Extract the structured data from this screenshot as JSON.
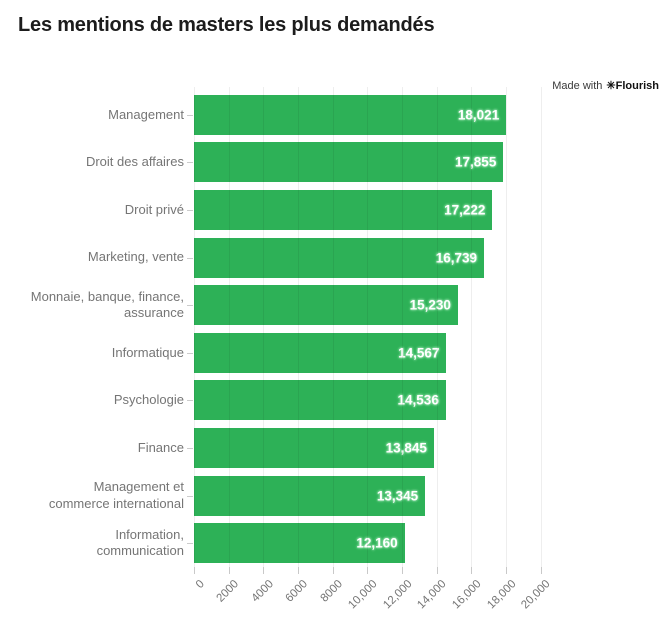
{
  "chart": {
    "title": "Les mentions de masters les plus demandés"
  },
  "badge": {
    "made_with": "Made with",
    "icon": "✳",
    "brand": "Flourish"
  },
  "chart_data": {
    "type": "bar",
    "orientation": "horizontal",
    "title": "Les mentions de masters les plus demandés",
    "categories": [
      "Management",
      "Droit des affaires",
      "Droit privé",
      "Marketing, vente",
      "Monnaie, banque, finance,\nassurance",
      "Informatique",
      "Psychologie",
      "Finance",
      "Management et\ncommerce international",
      "Information,\ncommunication"
    ],
    "values": [
      18021,
      17855,
      17222,
      16739,
      15230,
      14567,
      14536,
      13845,
      13345,
      12160
    ],
    "value_labels": [
      "18,021",
      "17,855",
      "17,222",
      "16,739",
      "15,230",
      "14,567",
      "14,536",
      "13,845",
      "13,345",
      "12,160"
    ],
    "xlim": [
      0,
      20000
    ],
    "x_ticks": [
      0,
      2000,
      4000,
      6000,
      8000,
      10000,
      12000,
      14000,
      16000,
      18000,
      20000
    ],
    "x_tick_labels": [
      "0",
      "2000",
      "4000",
      "6000",
      "8000",
      "10,000",
      "12,000",
      "14,000",
      "16,000",
      "18,000",
      "20,000"
    ],
    "bar_color": "#2db157",
    "grid": true,
    "legend": "none",
    "ylabel": "",
    "xlabel": ""
  }
}
